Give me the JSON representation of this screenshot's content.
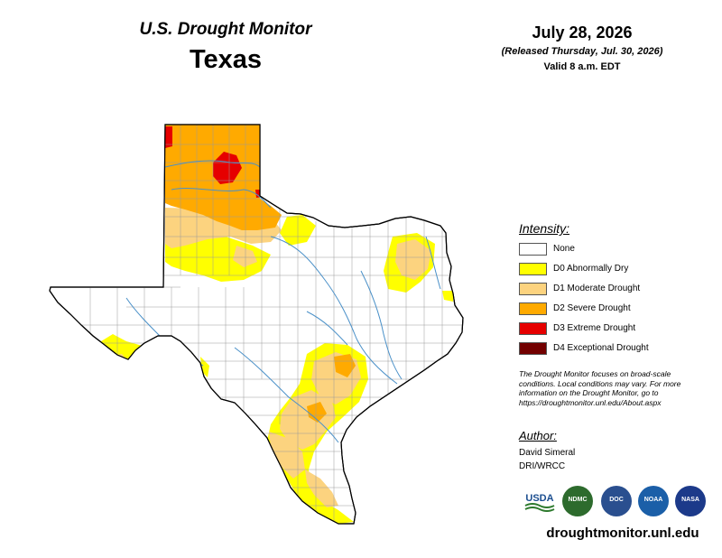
{
  "header": {
    "title": "U.S. Drought Monitor",
    "state": "Texas"
  },
  "date": {
    "main": "July 28, 2026",
    "released": "(Released Thursday, Jul. 30, 2026)",
    "valid": "Valid 8 a.m. EDT"
  },
  "legend": {
    "title": "Intensity:",
    "items": [
      {
        "label": "None",
        "color": "#ffffff"
      },
      {
        "label": "D0 Abnormally Dry",
        "color": "#ffff00"
      },
      {
        "label": "D1 Moderate Drought",
        "color": "#fcd37f"
      },
      {
        "label": "D2 Severe Drought",
        "color": "#ffaa00"
      },
      {
        "label": "D3 Extreme Drought",
        "color": "#e60000"
      },
      {
        "label": "D4 Exceptional Drought",
        "color": "#730000"
      }
    ]
  },
  "note": "The Drought Monitor focuses on broad-scale conditions. Local conditions may vary. For more information on the Drought Monitor, go to https://droughtmonitor.unl.edu/About.aspx",
  "author": {
    "title": "Author:",
    "name": "David Simeral",
    "org": "DRI/WRCC"
  },
  "logos": [
    {
      "name": "usda-logo",
      "text": "USDA"
    },
    {
      "name": "ndmc-logo",
      "text": "NDMC"
    },
    {
      "name": "doc-logo",
      "text": "DOC"
    },
    {
      "name": "noaa-logo",
      "text": "NOAA"
    },
    {
      "name": "nasa-logo",
      "text": "NASA"
    }
  ],
  "website": "droughtmonitor.unl.edu"
}
